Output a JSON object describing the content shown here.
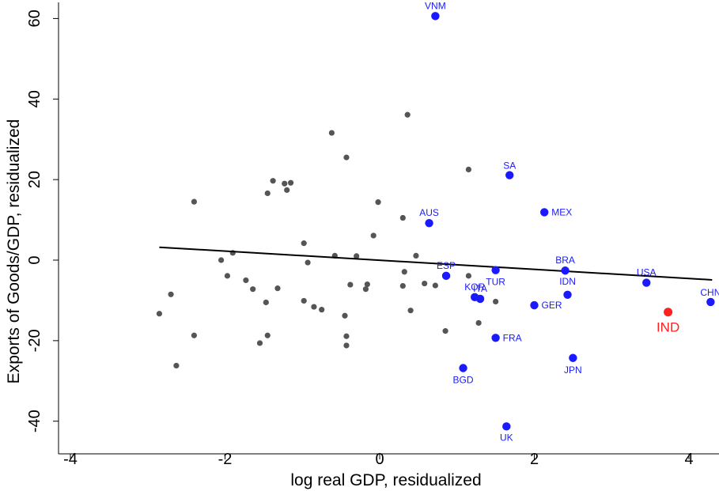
{
  "chart_data": {
    "type": "scatter",
    "xlabel": "log real GDP, residualized",
    "ylabel": "Exports of Goods/GDP, residualized",
    "xlim": [
      -4.4,
      4.4
    ],
    "ylim": [
      -48,
      64
    ],
    "xticks": [
      -4,
      -2,
      0,
      2,
      4
    ],
    "yticks": [
      -40,
      -20,
      0,
      20,
      40,
      60
    ],
    "grid": false,
    "legend": "none",
    "colors": {
      "other": "#555555",
      "labeled": "#1a1aff",
      "highlight": "#ff2020",
      "fit": "#000000"
    },
    "fit_line": {
      "x": [
        -2.85,
        4.3
      ],
      "y": [
        3.2,
        -4.9
      ]
    },
    "labeled_points": [
      {
        "label": "VNM",
        "x": 0.72,
        "y": 60.6
      },
      {
        "label": "SA",
        "x": 1.68,
        "y": 21.1
      },
      {
        "label": "MEX",
        "x": 2.13,
        "y": 11.9
      },
      {
        "label": "AUS",
        "x": 0.64,
        "y": 9.2
      },
      {
        "label": "ESP",
        "x": 0.86,
        "y": -3.9
      },
      {
        "label": "TUR",
        "x": 1.5,
        "y": -2.5
      },
      {
        "label": "BRA",
        "x": 2.4,
        "y": -2.6
      },
      {
        "label": "USA",
        "x": 3.45,
        "y": -5.6
      },
      {
        "label": "KOR",
        "x": 1.23,
        "y": -9.2
      },
      {
        "label": "ITA",
        "x": 1.3,
        "y": -9.6
      },
      {
        "label": "IDN",
        "x": 2.43,
        "y": -8.6
      },
      {
        "label": "GER",
        "x": 2.0,
        "y": -11.2
      },
      {
        "label": "CHN",
        "x": 4.28,
        "y": -10.4
      },
      {
        "label": "FRA",
        "x": 1.5,
        "y": -19.3
      },
      {
        "label": "BGD",
        "x": 1.08,
        "y": -26.8
      },
      {
        "label": "JPN",
        "x": 2.5,
        "y": -24.3
      },
      {
        "label": "UK",
        "x": 1.64,
        "y": -41.3
      }
    ],
    "highlight_point": {
      "label": "IND",
      "x": 3.73,
      "y": -12.9
    },
    "other_points": [
      {
        "x": -2.85,
        "y": -13.3
      },
      {
        "x": -2.7,
        "y": -8.5
      },
      {
        "x": -2.63,
        "y": -26.2
      },
      {
        "x": -2.4,
        "y": 14.5
      },
      {
        "x": -2.4,
        "y": -18.7
      },
      {
        "x": -2.05,
        "y": 0.0
      },
      {
        "x": -1.97,
        "y": -3.9
      },
      {
        "x": -1.9,
        "y": 1.8
      },
      {
        "x": -1.73,
        "y": -5.0
      },
      {
        "x": -1.64,
        "y": -7.2
      },
      {
        "x": -1.55,
        "y": -20.6
      },
      {
        "x": -1.47,
        "y": -10.5
      },
      {
        "x": -1.45,
        "y": 16.6
      },
      {
        "x": -1.45,
        "y": -18.7
      },
      {
        "x": -1.38,
        "y": 19.7
      },
      {
        "x": -1.32,
        "y": -7.0
      },
      {
        "x": -1.23,
        "y": 19.0
      },
      {
        "x": -1.2,
        "y": 17.4
      },
      {
        "x": -1.15,
        "y": 19.2
      },
      {
        "x": -0.98,
        "y": 4.2
      },
      {
        "x": -0.98,
        "y": -10.1
      },
      {
        "x": -0.93,
        "y": -0.6
      },
      {
        "x": -0.85,
        "y": -11.6
      },
      {
        "x": -0.75,
        "y": -12.3
      },
      {
        "x": -0.62,
        "y": 31.6
      },
      {
        "x": -0.58,
        "y": 1.1
      },
      {
        "x": -0.45,
        "y": -13.8
      },
      {
        "x": -0.43,
        "y": 25.5
      },
      {
        "x": -0.43,
        "y": -18.9
      },
      {
        "x": -0.43,
        "y": -21.2
      },
      {
        "x": -0.38,
        "y": -6.1
      },
      {
        "x": -0.3,
        "y": 1.0
      },
      {
        "x": -0.18,
        "y": -7.2
      },
      {
        "x": -0.16,
        "y": -6.0
      },
      {
        "x": -0.08,
        "y": 6.1
      },
      {
        "x": -0.02,
        "y": 14.4
      },
      {
        "x": 0.3,
        "y": 10.5
      },
      {
        "x": 0.3,
        "y": -6.4
      },
      {
        "x": 0.32,
        "y": -2.9
      },
      {
        "x": 0.36,
        "y": 36.1
      },
      {
        "x": 0.4,
        "y": -12.5
      },
      {
        "x": 0.47,
        "y": 1.1
      },
      {
        "x": 0.58,
        "y": -5.8
      },
      {
        "x": 0.72,
        "y": -6.3
      },
      {
        "x": 0.85,
        "y": -17.6
      },
      {
        "x": 1.15,
        "y": 22.5
      },
      {
        "x": 1.15,
        "y": -3.9
      },
      {
        "x": 1.28,
        "y": -15.6
      },
      {
        "x": 1.5,
        "y": -10.3
      }
    ]
  }
}
